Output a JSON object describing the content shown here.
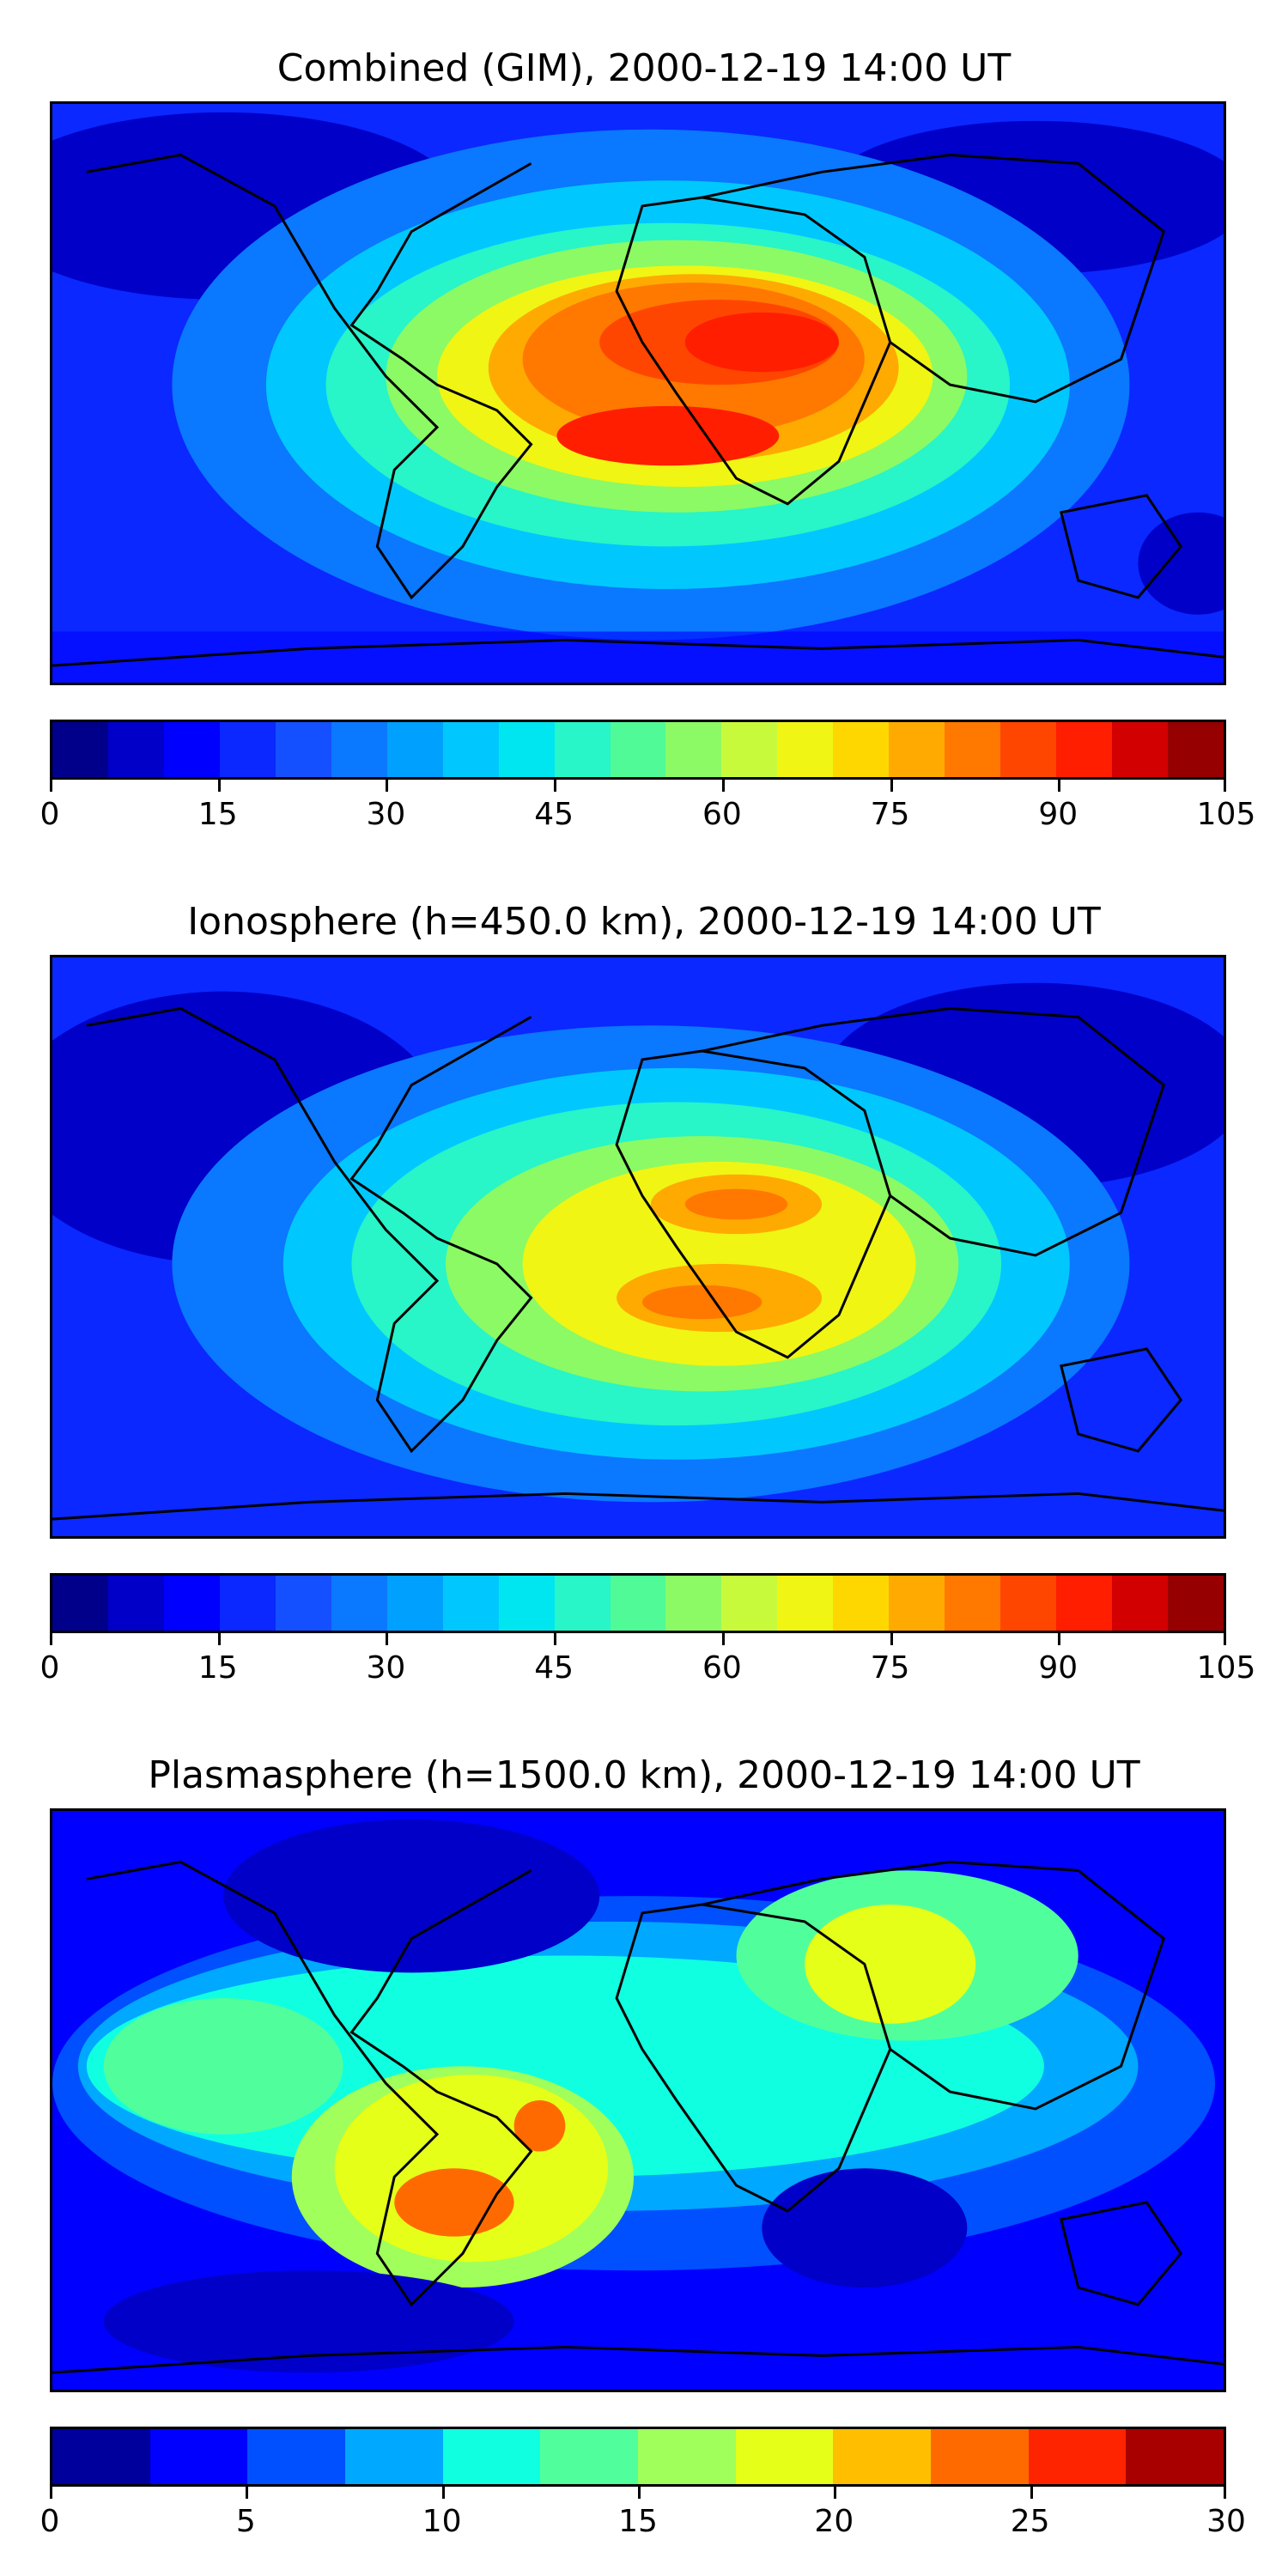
{
  "panels": [
    {
      "title": "Combined (GIM), 2000-12-19 14:00 UT",
      "colorbar": {
        "colors": [
          "#00008b",
          "#0000c8",
          "#0000ff",
          "#0a28ff",
          "#1450ff",
          "#0a78ff",
          "#00a0ff",
          "#00c8ff",
          "#00e6f0",
          "#28f5c8",
          "#50fa96",
          "#8cfa64",
          "#c8fa3c",
          "#f0f514",
          "#ffd700",
          "#ffaa00",
          "#ff7800",
          "#ff4600",
          "#ff1e00",
          "#d20000",
          "#960000"
        ],
        "ticks": [
          "0",
          "15",
          "30",
          "45",
          "60",
          "75",
          "90",
          "105"
        ]
      }
    },
    {
      "title": "Ionosphere  (h=450.0 km), 2000-12-19 14:00 UT",
      "colorbar": {
        "colors": [
          "#00008b",
          "#0000c8",
          "#0000ff",
          "#0a28ff",
          "#1450ff",
          "#0a78ff",
          "#00a0ff",
          "#00c8ff",
          "#00e6f0",
          "#28f5c8",
          "#50fa96",
          "#8cfa64",
          "#c8fa3c",
          "#f0f514",
          "#ffd700",
          "#ffaa00",
          "#ff7800",
          "#ff4600",
          "#ff1e00",
          "#d20000",
          "#960000"
        ],
        "ticks": [
          "0",
          "15",
          "30",
          "45",
          "60",
          "75",
          "90",
          "105"
        ]
      }
    },
    {
      "title": "Plasmasphere (h=1500.0 km), 2000-12-19 14:00 UT",
      "colorbar": {
        "colors": [
          "#00009c",
          "#0000ff",
          "#0050ff",
          "#00a8ff",
          "#10ffe0",
          "#50ff9c",
          "#a0ff5a",
          "#e6ff18",
          "#ffbe00",
          "#ff6a00",
          "#ff2400",
          "#a80000"
        ],
        "ticks": [
          "0",
          "5",
          "10",
          "15",
          "20",
          "25",
          "30"
        ]
      }
    }
  ]
}
